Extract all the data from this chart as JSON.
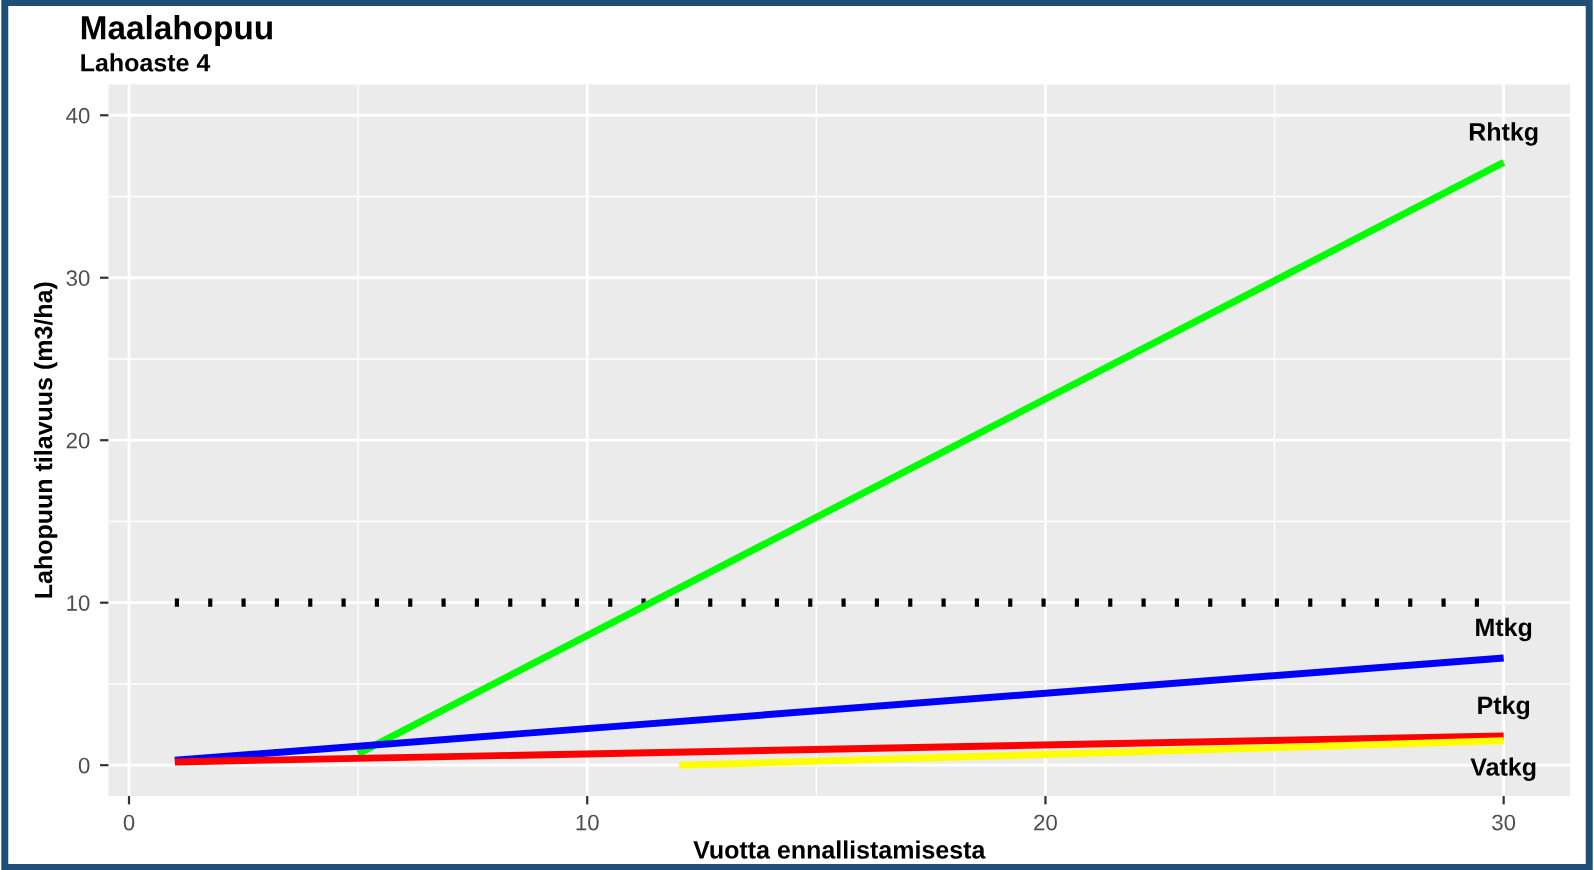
{
  "chart_data": {
    "type": "line",
    "title": "Maalahopuu",
    "subtitle": "Lahoaste 4",
    "xlabel": "Vuotta ennallistamisesta",
    "ylabel": "Lahopuun tilavuus (m3/ha)",
    "series": [
      {
        "name": "Rhtkg",
        "color": "#00ff00",
        "x": [
          5,
          30
        ],
        "values": [
          0.7,
          37.1
        ]
      },
      {
        "name": "Mtkg",
        "color": "#0000ff",
        "x": [
          1,
          30
        ],
        "values": [
          0.3,
          6.6
        ]
      },
      {
        "name": "Ptkg",
        "color": "#ff0000",
        "x": [
          1,
          30
        ],
        "values": [
          0.2,
          1.8
        ]
      },
      {
        "name": "Vatkg",
        "color": "#ffff00",
        "x": [
          12,
          30
        ],
        "values": [
          0.0,
          1.5
        ]
      }
    ],
    "ref_lines": [
      {
        "axis": "y",
        "value": 10,
        "color": "#000000",
        "line_style": "dotted"
      }
    ],
    "xlim": [
      -0.45,
      31.45
    ],
    "ylim": [
      -1.9,
      41.9
    ],
    "xticks": [
      0,
      10,
      20,
      30
    ],
    "yticks": [
      0,
      10,
      20,
      30,
      40
    ],
    "grid": true,
    "legend": false,
    "marker": "none",
    "line_style": "solid"
  }
}
